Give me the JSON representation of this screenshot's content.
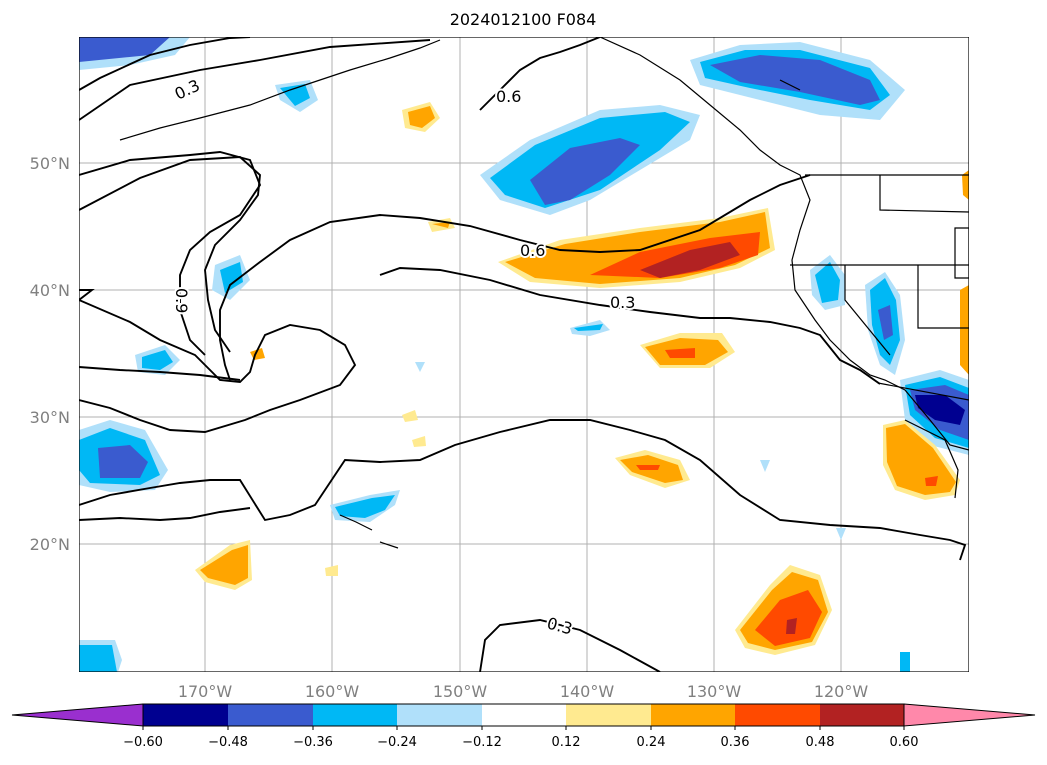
{
  "title": "2024012100 F084",
  "map": {
    "lat_labels": [
      "50°N",
      "40°N",
      "30°N",
      "20°N"
    ],
    "lon_labels": [
      "170°W",
      "160°W",
      "150°W",
      "140°W",
      "130°W",
      "120°W"
    ],
    "contour_labels": [
      "0.3",
      "0.6",
      "0.6",
      "0.9",
      "0.3",
      "0.3"
    ]
  },
  "colorbar": {
    "ticks": [
      "−0.60",
      "−0.48",
      "−0.36",
      "−0.24",
      "−0.12",
      "0.12",
      "0.24",
      "0.36",
      "0.48",
      "0.60"
    ],
    "colors": [
      "#9a2fcf",
      "#000090",
      "#3a5bcf",
      "#00b8f5",
      "#b0e0fa",
      "#ffffff",
      "#ffea90",
      "#ffa500",
      "#ff4a00",
      "#b22222",
      "#ff88aa"
    ]
  }
}
